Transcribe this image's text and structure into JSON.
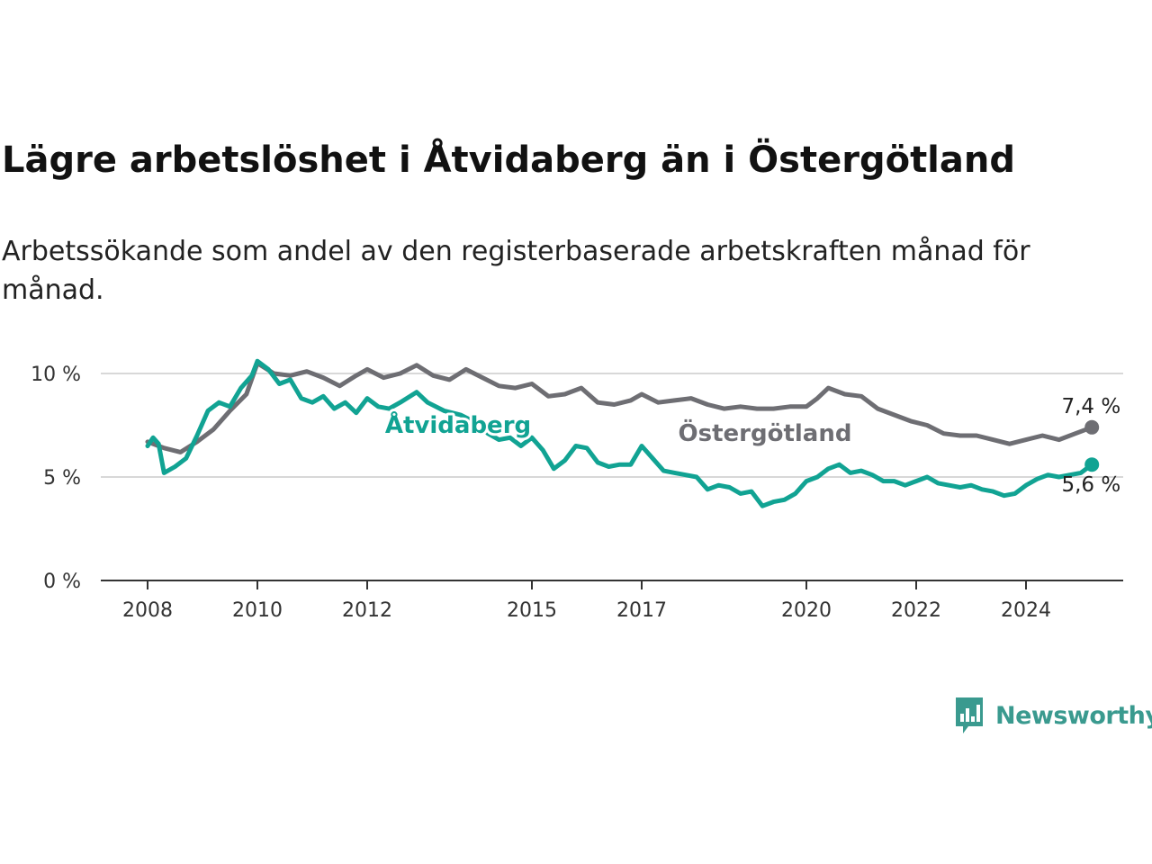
{
  "title": "Lägre arbetslöshet i Åtvidaberg än i Östergötland",
  "subtitle": "Arbetssökande som andel av den registerbaserade arbetskraften månad för månad.",
  "brand": {
    "name": "Newsworthy",
    "icon": "newsworthy-logo-icon",
    "color": "#3a9a8f"
  },
  "chart_data": {
    "type": "line",
    "ylim": [
      0,
      11
    ],
    "xlim": [
      2007.6,
      2025.8
    ],
    "grid": true,
    "y_ticks": [
      {
        "value": 0,
        "label": "0 %"
      },
      {
        "value": 5,
        "label": "5 %"
      },
      {
        "value": 10,
        "label": "10 %"
      }
    ],
    "x_ticks": [
      {
        "value": 2008,
        "label": "2008"
      },
      {
        "value": 2010,
        "label": "2010"
      },
      {
        "value": 2012,
        "label": "2012"
      },
      {
        "value": 2015,
        "label": "2015"
      },
      {
        "value": 2017,
        "label": "2017"
      },
      {
        "value": 2020,
        "label": "2020"
      },
      {
        "value": 2022,
        "label": "2022"
      },
      {
        "value": 2024,
        "label": "2024"
      }
    ],
    "series": [
      {
        "name": "Östergötland",
        "color": "#6e6e73",
        "end_label": "7,4 %",
        "points": [
          [
            2008.0,
            6.7
          ],
          [
            2008.3,
            6.4
          ],
          [
            2008.6,
            6.2
          ],
          [
            2008.9,
            6.7
          ],
          [
            2009.2,
            7.3
          ],
          [
            2009.5,
            8.2
          ],
          [
            2009.8,
            9.0
          ],
          [
            2010.0,
            10.5
          ],
          [
            2010.3,
            10.0
          ],
          [
            2010.6,
            9.9
          ],
          [
            2010.9,
            10.1
          ],
          [
            2011.2,
            9.8
          ],
          [
            2011.5,
            9.4
          ],
          [
            2011.8,
            9.9
          ],
          [
            2012.0,
            10.2
          ],
          [
            2012.3,
            9.8
          ],
          [
            2012.6,
            10.0
          ],
          [
            2012.9,
            10.4
          ],
          [
            2013.2,
            9.9
          ],
          [
            2013.5,
            9.7
          ],
          [
            2013.8,
            10.2
          ],
          [
            2014.1,
            9.8
          ],
          [
            2014.4,
            9.4
          ],
          [
            2014.7,
            9.3
          ],
          [
            2015.0,
            9.5
          ],
          [
            2015.3,
            8.9
          ],
          [
            2015.6,
            9.0
          ],
          [
            2015.9,
            9.3
          ],
          [
            2016.2,
            8.6
          ],
          [
            2016.5,
            8.5
          ],
          [
            2016.8,
            8.7
          ],
          [
            2017.0,
            9.0
          ],
          [
            2017.3,
            8.6
          ],
          [
            2017.6,
            8.7
          ],
          [
            2017.9,
            8.8
          ],
          [
            2018.2,
            8.5
          ],
          [
            2018.5,
            8.3
          ],
          [
            2018.8,
            8.4
          ],
          [
            2019.1,
            8.3
          ],
          [
            2019.4,
            8.3
          ],
          [
            2019.7,
            8.4
          ],
          [
            2020.0,
            8.4
          ],
          [
            2020.2,
            8.8
          ],
          [
            2020.4,
            9.3
          ],
          [
            2020.7,
            9.0
          ],
          [
            2021.0,
            8.9
          ],
          [
            2021.3,
            8.3
          ],
          [
            2021.6,
            8.0
          ],
          [
            2021.9,
            7.7
          ],
          [
            2022.2,
            7.5
          ],
          [
            2022.5,
            7.1
          ],
          [
            2022.8,
            7.0
          ],
          [
            2023.1,
            7.0
          ],
          [
            2023.4,
            6.8
          ],
          [
            2023.7,
            6.6
          ],
          [
            2024.0,
            6.8
          ],
          [
            2024.3,
            7.0
          ],
          [
            2024.6,
            6.8
          ],
          [
            2024.9,
            7.1
          ],
          [
            2025.2,
            7.4
          ]
        ]
      },
      {
        "name": "Åtvidaberg",
        "color": "#11a393",
        "end_label": "5,6 %",
        "points": [
          [
            2008.0,
            6.5
          ],
          [
            2008.1,
            6.9
          ],
          [
            2008.2,
            6.6
          ],
          [
            2008.3,
            5.2
          ],
          [
            2008.5,
            5.5
          ],
          [
            2008.7,
            5.9
          ],
          [
            2008.9,
            7.0
          ],
          [
            2009.1,
            8.2
          ],
          [
            2009.3,
            8.6
          ],
          [
            2009.5,
            8.4
          ],
          [
            2009.7,
            9.3
          ],
          [
            2009.9,
            9.9
          ],
          [
            2010.0,
            10.6
          ],
          [
            2010.2,
            10.2
          ],
          [
            2010.4,
            9.5
          ],
          [
            2010.6,
            9.7
          ],
          [
            2010.8,
            8.8
          ],
          [
            2011.0,
            8.6
          ],
          [
            2011.2,
            8.9
          ],
          [
            2011.4,
            8.3
          ],
          [
            2011.6,
            8.6
          ],
          [
            2011.8,
            8.1
          ],
          [
            2012.0,
            8.8
          ],
          [
            2012.2,
            8.4
          ],
          [
            2012.4,
            8.3
          ],
          [
            2012.6,
            8.6
          ],
          [
            2012.9,
            9.1
          ],
          [
            2013.1,
            8.6
          ],
          [
            2013.4,
            8.2
          ],
          [
            2013.7,
            8.0
          ],
          [
            2014.0,
            7.6
          ],
          [
            2014.2,
            7.1
          ],
          [
            2014.4,
            6.8
          ],
          [
            2014.6,
            6.9
          ],
          [
            2014.8,
            6.5
          ],
          [
            2015.0,
            6.9
          ],
          [
            2015.2,
            6.3
          ],
          [
            2015.4,
            5.4
          ],
          [
            2015.6,
            5.8
          ],
          [
            2015.8,
            6.5
          ],
          [
            2016.0,
            6.4
          ],
          [
            2016.2,
            5.7
          ],
          [
            2016.4,
            5.5
          ],
          [
            2016.6,
            5.6
          ],
          [
            2016.8,
            5.6
          ],
          [
            2017.0,
            6.5
          ],
          [
            2017.2,
            5.9
          ],
          [
            2017.4,
            5.3
          ],
          [
            2017.6,
            5.2
          ],
          [
            2017.8,
            5.1
          ],
          [
            2018.0,
            5.0
          ],
          [
            2018.2,
            4.4
          ],
          [
            2018.4,
            4.6
          ],
          [
            2018.6,
            4.5
          ],
          [
            2018.8,
            4.2
          ],
          [
            2019.0,
            4.3
          ],
          [
            2019.2,
            3.6
          ],
          [
            2019.4,
            3.8
          ],
          [
            2019.6,
            3.9
          ],
          [
            2019.8,
            4.2
          ],
          [
            2020.0,
            4.8
          ],
          [
            2020.2,
            5.0
          ],
          [
            2020.4,
            5.4
          ],
          [
            2020.6,
            5.6
          ],
          [
            2020.8,
            5.2
          ],
          [
            2021.0,
            5.3
          ],
          [
            2021.2,
            5.1
          ],
          [
            2021.4,
            4.8
          ],
          [
            2021.6,
            4.8
          ],
          [
            2021.8,
            4.6
          ],
          [
            2022.0,
            4.8
          ],
          [
            2022.2,
            5.0
          ],
          [
            2022.4,
            4.7
          ],
          [
            2022.6,
            4.6
          ],
          [
            2022.8,
            4.5
          ],
          [
            2023.0,
            4.6
          ],
          [
            2023.2,
            4.4
          ],
          [
            2023.4,
            4.3
          ],
          [
            2023.6,
            4.1
          ],
          [
            2023.8,
            4.2
          ],
          [
            2024.0,
            4.6
          ],
          [
            2024.2,
            4.9
          ],
          [
            2024.4,
            5.1
          ],
          [
            2024.6,
            5.0
          ],
          [
            2024.8,
            5.1
          ],
          [
            2025.0,
            5.2
          ],
          [
            2025.2,
            5.6
          ]
        ]
      }
    ]
  }
}
